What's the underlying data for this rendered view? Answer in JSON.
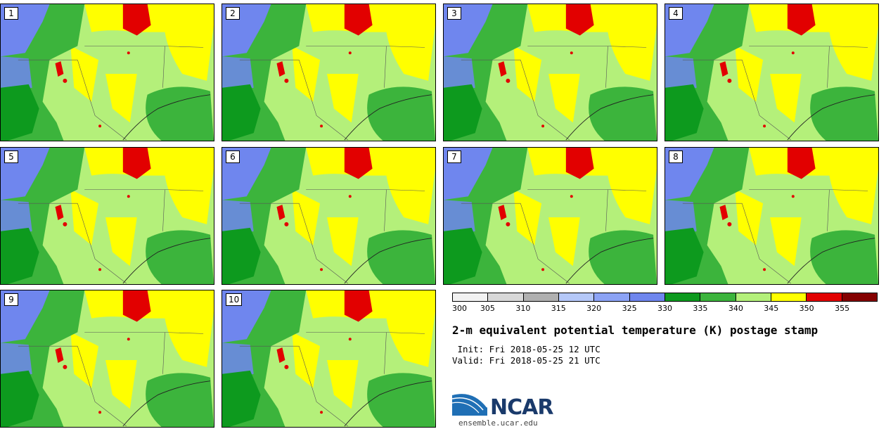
{
  "panels": [
    "1",
    "2",
    "3",
    "4",
    "5",
    "6",
    "7",
    "8",
    "9",
    "10"
  ],
  "colorbar": {
    "ticks": [
      "300",
      "305",
      "310",
      "315",
      "320",
      "325",
      "330",
      "335",
      "340",
      "345",
      "350",
      "355"
    ],
    "colors": [
      "#f2f2f2",
      "#d8d8d8",
      "#b0b0b0",
      "#b5c8f8",
      "#8ca3f5",
      "#6f86ee",
      "#0d9a1e",
      "#3cb43c",
      "#b4f07a",
      "#ffff00",
      "#e20000",
      "#840000"
    ]
  },
  "title": "2-m equivalent potential temperature (K) postage stamp",
  "init": " Init: Fri 2018-05-25 12 UTC",
  "valid": "Valid: Fri 2018-05-25 21 UTC",
  "logo": {
    "text": "NCAR",
    "url": "ensemble.ucar.edu"
  }
}
